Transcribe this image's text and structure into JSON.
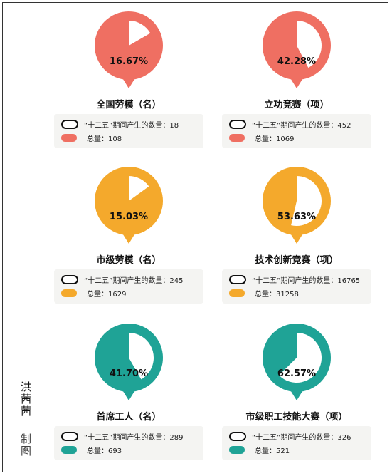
{
  "chart_data": [
    {
      "type": "pie",
      "title": "全国劳模（名）",
      "percent_label": "16.67%",
      "period_label": "“十二五”期间产生的数量：18",
      "total_label": "总量：108",
      "period_value": 18,
      "total_value": 108,
      "share": 0.1667,
      "color": "#ef6f62"
    },
    {
      "type": "pie",
      "title": "立功竞赛（项）",
      "percent_label": "42.28%",
      "period_label": "“十二五”期间产生的数量：452",
      "total_label": "总量：1069",
      "period_value": 452,
      "total_value": 1069,
      "share": 0.4228,
      "color": "#ef6f62"
    },
    {
      "type": "pie",
      "title": "市级劳模（名）",
      "percent_label": "15.03%",
      "period_label": "“十二五”期间产生的数量：245",
      "total_label": "总量：1629",
      "period_value": 245,
      "total_value": 1629,
      "share": 0.1503,
      "color": "#f4a92c"
    },
    {
      "type": "pie",
      "title": "技术创新竞赛（项）",
      "percent_label": "53.63%",
      "period_label": "“十二五”期间产生的数量：16765",
      "total_label": "总量：31258",
      "period_value": 16765,
      "total_value": 31258,
      "share": 0.5363,
      "color": "#f4a92c"
    },
    {
      "type": "pie",
      "title": "首席工人（名）",
      "percent_label": "41.70%",
      "period_label": "“十二五”期间产生的数量：289",
      "total_label": "总量：693",
      "period_value": 289,
      "total_value": 693,
      "share": 0.417,
      "color": "#1fa396"
    },
    {
      "type": "pie",
      "title": "市级职工技能大赛（项）",
      "percent_label": "62.57%",
      "period_label": "“十二五”期间产生的数量：326",
      "total_label": "总量：521",
      "period_value": 326,
      "total_value": 521,
      "share": 0.6257,
      "color": "#1fa396"
    }
  ],
  "credit": {
    "author": "洪茜茜",
    "role": "制图"
  }
}
